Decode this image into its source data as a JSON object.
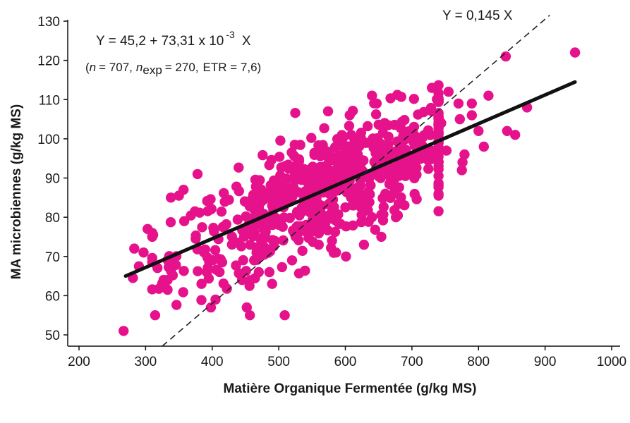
{
  "chart_data": {
    "type": "scatter",
    "xlabel": "Matière Organique Fermentée (g/kg MS)",
    "ylabel": "MA microbiennes (g/kg MS)",
    "xlim": [
      200,
      1000
    ],
    "ylim": [
      50,
      130
    ],
    "xticks": [
      200,
      300,
      400,
      500,
      600,
      700,
      800,
      900,
      1000
    ],
    "yticks": [
      50,
      60,
      70,
      80,
      90,
      100,
      110,
      120,
      130
    ],
    "grid": false,
    "point_color": "#e6128c",
    "line_color": "#111111",
    "regression": {
      "equation_prefix": "Y = 45,2 + 73,31 x 10",
      "exponent": "-3",
      "equation_suffix": "X",
      "intercept": 45.2,
      "slope": 0.07331,
      "x_range": [
        270,
        945
      ]
    },
    "reference_line": {
      "label": "Y = 0,145  X",
      "slope": 0.145,
      "x_range": [
        325,
        907
      ]
    },
    "stats": {
      "n_label": "n",
      "n_value": "= 707,",
      "nexp_label": "n",
      "nexp_sub": "exp",
      "nexp_value": "= 270,",
      "etr": "ETR = 7,6"
    },
    "points_outliers": [
      [
        267,
        51
      ],
      [
        283,
        72
      ],
      [
        297,
        71
      ],
      [
        303,
        77
      ],
      [
        281,
        64.5
      ],
      [
        290,
        67.5
      ],
      [
        333,
        61.5
      ],
      [
        333,
        64
      ],
      [
        327,
        64
      ],
      [
        338,
        85
      ],
      [
        350,
        85.5
      ],
      [
        357,
        87
      ],
      [
        378,
        91
      ],
      [
        358,
        79
      ],
      [
        398,
        57
      ],
      [
        405,
        59
      ],
      [
        452,
        57
      ],
      [
        520,
        69
      ],
      [
        628,
        73
      ],
      [
        640,
        80
      ],
      [
        654,
        75
      ],
      [
        676,
        80
      ],
      [
        740,
        86
      ],
      [
        776,
        94
      ],
      [
        775,
        92
      ],
      [
        779,
        96
      ],
      [
        752,
        97
      ],
      [
        772,
        105
      ],
      [
        790,
        106
      ],
      [
        800,
        102
      ],
      [
        808,
        98
      ],
      [
        815,
        111
      ],
      [
        843,
        102
      ],
      [
        855,
        101
      ],
      [
        873,
        108
      ],
      [
        841,
        121
      ],
      [
        945,
        122
      ],
      [
        730,
        113
      ],
      [
        755,
        112
      ],
      [
        790,
        109
      ],
      [
        770,
        109
      ],
      [
        744,
        104
      ],
      [
        730,
        107
      ],
      [
        586,
        71
      ],
      [
        560,
        73
      ],
      [
        580,
        74
      ],
      [
        470,
        66
      ],
      [
        490,
        63
      ],
      [
        486,
        66
      ],
      [
        384,
        63
      ],
      [
        392,
        66
      ],
      [
        445,
        64
      ],
      [
        463,
        69
      ],
      [
        601,
        70
      ],
      [
        640,
        111
      ],
      [
        647,
        109
      ],
      [
        659,
        104
      ],
      [
        703,
        99
      ],
      [
        612,
        83
      ],
      [
        574,
        107
      ]
    ],
    "cloud": {
      "count": 640,
      "x_mean": 575,
      "x_sd": 115,
      "intercept": 45.2,
      "slope": 0.07331,
      "resid_sd": 7.0,
      "x_range": [
        310,
        740
      ]
    }
  }
}
